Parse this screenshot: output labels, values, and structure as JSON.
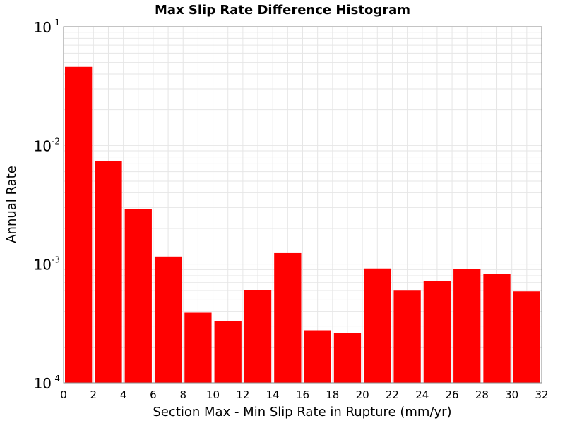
{
  "chart_data": {
    "type": "bar",
    "title": "Max Slip Rate Difference Histogram",
    "xlabel": "Section Max - Min Slip Rate in Rupture (mm/yr)",
    "ylabel": "Annual Rate",
    "yscale": "log",
    "ylim": [
      0.0001,
      0.1
    ],
    "xlim": [
      0,
      32
    ],
    "x_ticks": [
      "0",
      "2",
      "4",
      "6",
      "8",
      "10",
      "12",
      "14",
      "16",
      "18",
      "20",
      "22",
      "24",
      "26",
      "28",
      "30",
      "32"
    ],
    "y_ticks": [
      {
        "base": "10",
        "exp": "-4",
        "value": 0.0001
      },
      {
        "base": "10",
        "exp": "-3",
        "value": 0.001
      },
      {
        "base": "10",
        "exp": "-2",
        "value": 0.01
      },
      {
        "base": "10",
        "exp": "-1",
        "value": 0.1
      }
    ],
    "bin_width": 2,
    "bins": [
      {
        "start": 0,
        "end": 2,
        "value": 0.046
      },
      {
        "start": 2,
        "end": 4,
        "value": 0.0074
      },
      {
        "start": 4,
        "end": 6,
        "value": 0.0029
      },
      {
        "start": 6,
        "end": 8,
        "value": 0.00116
      },
      {
        "start": 8,
        "end": 10,
        "value": 0.00039
      },
      {
        "start": 10,
        "end": 12,
        "value": 0.000332
      },
      {
        "start": 12,
        "end": 14,
        "value": 0.000608
      },
      {
        "start": 14,
        "end": 16,
        "value": 0.00124
      },
      {
        "start": 16,
        "end": 18,
        "value": 0.000277
      },
      {
        "start": 18,
        "end": 20,
        "value": 0.000262
      },
      {
        "start": 20,
        "end": 22,
        "value": 0.00092
      },
      {
        "start": 22,
        "end": 24,
        "value": 0.000598
      },
      {
        "start": 24,
        "end": 26,
        "value": 0.00072
      },
      {
        "start": 26,
        "end": 28,
        "value": 0.00091
      },
      {
        "start": 28,
        "end": 30,
        "value": 0.00083
      },
      {
        "start": 30,
        "end": 32,
        "value": 0.00059
      }
    ],
    "bar_color": "#ff0000",
    "grid": true,
    "grid_color": "#e6e6e6",
    "legend": "none"
  }
}
